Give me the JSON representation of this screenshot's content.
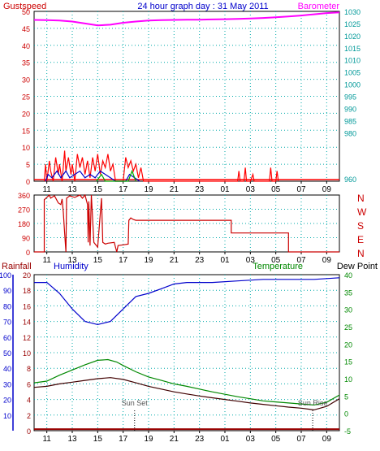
{
  "header": {
    "left_label": "Gustspeed",
    "title": "24 hour graph day : 31 May 2011",
    "right_label": "Barometer"
  },
  "colors": {
    "gust": "#ff0000",
    "wind_avg": "#0000cc",
    "wind_extra": "#00aa00",
    "barometer": "#ff00ff",
    "axis_left_top": "#cc0000",
    "axis_right_top": "#009999",
    "direction": "#cc0000",
    "humidity": "#0000cc",
    "temperature": "#008800",
    "dewpoint": "#400000",
    "rainfall": "#990000",
    "axis_bottom_right": "#008800",
    "grid": "#00aaaa",
    "frame": "#000000",
    "title": "#0000cc"
  },
  "chart_data": [
    {
      "type": "line",
      "name": "wind-and-barometer",
      "x_ticks": [
        "11",
        "13",
        "15",
        "17",
        "19",
        "21",
        "23",
        "01",
        "03",
        "05",
        "07",
        "09"
      ],
      "x_domain_hours": [
        10.0,
        34.0
      ],
      "left_axis": {
        "ticks": [
          0,
          5,
          10,
          15,
          20,
          25,
          30,
          35,
          40,
          45,
          50
        ],
        "ylim": [
          0,
          50
        ]
      },
      "right_axis": {
        "ticks": [
          980,
          985,
          990,
          995,
          1000,
          1005,
          1010,
          1015,
          1020,
          1025,
          1030
        ],
        "extra_tick": 960,
        "ylim": [
          960,
          1030
        ]
      },
      "series": [
        {
          "key": "barometer",
          "axis": "right",
          "points": [
            [
              10.0,
              1026.5
            ],
            [
              11,
              1026.4
            ],
            [
              12,
              1026.2
            ],
            [
              13,
              1025.8
            ],
            [
              14,
              1025.0
            ],
            [
              15,
              1024.2
            ],
            [
              16,
              1024.5
            ],
            [
              17,
              1025.3
            ],
            [
              18,
              1025.8
            ],
            [
              19,
              1026.2
            ],
            [
              20,
              1026.4
            ],
            [
              21,
              1026.5
            ],
            [
              22,
              1026.6
            ],
            [
              23,
              1026.6
            ],
            [
              24,
              1026.7
            ],
            [
              25,
              1026.8
            ],
            [
              26,
              1026.9
            ],
            [
              27,
              1027.1
            ],
            [
              28,
              1027.3
            ],
            [
              29,
              1027.6
            ],
            [
              30,
              1027.9
            ],
            [
              31,
              1028.3
            ],
            [
              32,
              1028.8
            ],
            [
              33,
              1029.3
            ],
            [
              34,
              1029.6
            ]
          ]
        },
        {
          "key": "gust",
          "axis": "left",
          "points": [
            [
              10.8,
              0
            ],
            [
              10.9,
              5
            ],
            [
              11.0,
              0
            ],
            [
              11.2,
              6
            ],
            [
              11.3,
              3
            ],
            [
              11.5,
              0
            ],
            [
              11.7,
              7
            ],
            [
              11.9,
              2
            ],
            [
              12.0,
              5
            ],
            [
              12.2,
              0
            ],
            [
              12.4,
              9
            ],
            [
              12.5,
              3
            ],
            [
              12.7,
              7
            ],
            [
              12.9,
              2
            ],
            [
              13.0,
              5
            ],
            [
              13.2,
              0
            ],
            [
              13.4,
              8
            ],
            [
              13.6,
              4
            ],
            [
              13.8,
              7
            ],
            [
              14.0,
              2
            ],
            [
              14.2,
              6
            ],
            [
              14.4,
              1
            ],
            [
              14.6,
              7
            ],
            [
              14.8,
              3
            ],
            [
              15.0,
              8
            ],
            [
              15.2,
              2
            ],
            [
              15.4,
              6
            ],
            [
              15.6,
              4
            ],
            [
              15.8,
              8
            ],
            [
              16.0,
              3
            ],
            [
              16.2,
              5
            ],
            [
              16.4,
              0
            ],
            [
              16.6,
              0
            ],
            [
              17.0,
              0
            ],
            [
              17.2,
              7
            ],
            [
              17.4,
              4
            ],
            [
              17.6,
              6
            ],
            [
              17.8,
              3
            ],
            [
              18.0,
              5
            ],
            [
              18.2,
              1
            ],
            [
              18.4,
              4
            ],
            [
              18.6,
              0
            ],
            [
              26.0,
              0
            ],
            [
              26.1,
              3
            ],
            [
              26.2,
              0
            ],
            [
              26.5,
              0
            ],
            [
              26.6,
              4
            ],
            [
              26.7,
              0
            ],
            [
              27.0,
              0
            ],
            [
              27.2,
              2
            ],
            [
              27.3,
              0
            ],
            [
              28.5,
              0
            ],
            [
              28.6,
              4
            ],
            [
              28.7,
              0
            ],
            [
              29.0,
              0
            ],
            [
              29.1,
              3
            ],
            [
              29.2,
              0
            ]
          ]
        },
        {
          "key": "wind_avg",
          "axis": "left",
          "points": [
            [
              10.9,
              0
            ],
            [
              11.1,
              2
            ],
            [
              11.4,
              1
            ],
            [
              11.8,
              3
            ],
            [
              12.1,
              1
            ],
            [
              12.5,
              3
            ],
            [
              12.8,
              1
            ],
            [
              13.2,
              2
            ],
            [
              13.6,
              3
            ],
            [
              14.0,
              1
            ],
            [
              14.4,
              2
            ],
            [
              14.8,
              1
            ],
            [
              15.2,
              3
            ],
            [
              15.6,
              2
            ],
            [
              16.0,
              1
            ],
            [
              16.4,
              0
            ],
            [
              17.2,
              0
            ],
            [
              17.5,
              2
            ],
            [
              17.9,
              1
            ],
            [
              18.3,
              0
            ]
          ]
        },
        {
          "key": "wind_extra",
          "axis": "left",
          "points": [
            [
              14.9,
              0
            ],
            [
              15.3,
              2
            ],
            [
              15.6,
              0
            ],
            [
              17.4,
              0
            ],
            [
              17.7,
              3
            ],
            [
              18.0,
              0
            ]
          ]
        }
      ]
    },
    {
      "type": "line",
      "name": "wind-direction",
      "x_ticks": [
        "11",
        "13",
        "15",
        "17",
        "19",
        "21",
        "23",
        "01",
        "03",
        "05",
        "07",
        "09"
      ],
      "x_domain_hours": [
        10.0,
        34.0
      ],
      "left_axis": {
        "ticks": [
          0,
          90,
          180,
          270,
          360
        ],
        "ylim": [
          0,
          360
        ]
      },
      "right_labels": [
        "N",
        "W",
        "S",
        "E",
        "N"
      ],
      "points": [
        [
          10.0,
          0
        ],
        [
          10.8,
          0
        ],
        [
          10.8,
          330
        ],
        [
          11.2,
          360
        ],
        [
          11.3,
          340
        ],
        [
          11.5,
          350
        ],
        [
          11.6,
          355
        ],
        [
          11.9,
          310
        ],
        [
          12.1,
          300
        ],
        [
          12.2,
          335
        ],
        [
          12.3,
          250
        ],
        [
          12.4,
          120
        ],
        [
          12.5,
          0
        ],
        [
          12.55,
          340
        ],
        [
          12.8,
          355
        ],
        [
          13.2,
          345
        ],
        [
          13.6,
          360
        ],
        [
          13.8,
          340
        ],
        [
          14.0,
          360
        ],
        [
          14.2,
          300
        ],
        [
          14.25,
          60
        ],
        [
          14.3,
          320
        ],
        [
          14.4,
          40
        ],
        [
          14.5,
          360
        ],
        [
          14.7,
          60
        ],
        [
          15.0,
          30
        ],
        [
          15.3,
          340
        ],
        [
          15.4,
          60
        ],
        [
          15.6,
          50
        ],
        [
          15.8,
          55
        ],
        [
          16.3,
          60
        ],
        [
          16.5,
          0
        ],
        [
          16.6,
          40
        ],
        [
          17.0,
          45
        ],
        [
          17.4,
          50
        ],
        [
          17.45,
          200
        ],
        [
          17.6,
          215
        ],
        [
          17.8,
          205
        ],
        [
          18.0,
          200
        ],
        [
          25.5,
          200
        ],
        [
          25.5,
          120
        ],
        [
          30.0,
          120
        ],
        [
          30.0,
          0
        ],
        [
          34.0,
          0
        ]
      ]
    },
    {
      "type": "line",
      "name": "humidity-temperature-dewpoint-rain",
      "x_ticks": [
        "11",
        "13",
        "15",
        "17",
        "19",
        "21",
        "23",
        "01",
        "03",
        "05",
        "07",
        "09"
      ],
      "x_domain_hours": [
        10.0,
        34.0
      ],
      "legend": [
        "Rainfall",
        "Humidity",
        "Temperature",
        "Dew Point"
      ],
      "rain_axis": {
        "ticks": [
          0,
          2,
          4,
          6,
          8,
          10,
          12,
          14,
          16,
          18,
          20
        ],
        "ylim": [
          0,
          20
        ]
      },
      "humidity_axis": {
        "ticks": [
          10,
          20,
          30,
          40,
          50,
          60,
          70,
          80,
          90,
          100
        ],
        "ylim": [
          0,
          100
        ]
      },
      "temperature_axis": {
        "ticks": [
          -5,
          0,
          5,
          10,
          15,
          20,
          25,
          30,
          35,
          40
        ],
        "ylim": [
          -5,
          40
        ]
      },
      "annotations": [
        {
          "label": "Sun Set",
          "x": 17.9
        },
        {
          "label": "Sun Rise",
          "x": 31.9
        }
      ],
      "series": [
        {
          "key": "humidity",
          "axis": "humidity",
          "points": [
            [
              10.0,
              95
            ],
            [
              11,
              95
            ],
            [
              12,
              88
            ],
            [
              13,
              78
            ],
            [
              14,
              70
            ],
            [
              15,
              68
            ],
            [
              16,
              70
            ],
            [
              17,
              78
            ],
            [
              18,
              86
            ],
            [
              19,
              88
            ],
            [
              20,
              91
            ],
            [
              21,
              94
            ],
            [
              22,
              95
            ],
            [
              24,
              95
            ],
            [
              26,
              96
            ],
            [
              28,
              97
            ],
            [
              30,
              97
            ],
            [
              32,
              97
            ],
            [
              34,
              98
            ]
          ]
        },
        {
          "key": "temperature",
          "axis": "temperature",
          "points": [
            [
              10.0,
              8.8
            ],
            [
              11,
              9.3
            ],
            [
              12,
              11.0
            ],
            [
              13,
              12.5
            ],
            [
              14,
              14.0
            ],
            [
              15,
              15.3
            ],
            [
              15.8,
              15.5
            ],
            [
              16.5,
              14.8
            ],
            [
              17,
              13.8
            ],
            [
              18,
              12.0
            ],
            [
              19,
              10.5
            ],
            [
              20,
              9.5
            ],
            [
              21,
              8.5
            ],
            [
              22,
              7.8
            ],
            [
              23,
              7.0
            ],
            [
              24,
              6.2
            ],
            [
              25,
              5.5
            ],
            [
              26,
              4.8
            ],
            [
              27,
              4.2
            ],
            [
              28,
              3.6
            ],
            [
              29,
              3.3
            ],
            [
              30,
              3.0
            ],
            [
              31,
              2.7
            ],
            [
              32,
              2.4
            ],
            [
              33,
              3.2
            ],
            [
              34,
              5.3
            ]
          ]
        },
        {
          "key": "dewpoint",
          "axis": "temperature",
          "points": [
            [
              10.0,
              7.5
            ],
            [
              11,
              7.8
            ],
            [
              12,
              8.5
            ],
            [
              13,
              9.0
            ],
            [
              14,
              9.5
            ],
            [
              15,
              10.0
            ],
            [
              16,
              10.3
            ],
            [
              17,
              9.8
            ],
            [
              18,
              8.8
            ],
            [
              19,
              7.8
            ],
            [
              20,
              7.0
            ],
            [
              21,
              6.2
            ],
            [
              22,
              5.6
            ],
            [
              23,
              5.0
            ],
            [
              24,
              4.5
            ],
            [
              25,
              4.0
            ],
            [
              26,
              3.5
            ],
            [
              27,
              3.0
            ],
            [
              28,
              2.6
            ],
            [
              29,
              2.2
            ],
            [
              30,
              1.8
            ],
            [
              31,
              1.5
            ],
            [
              32,
              1.0
            ],
            [
              33,
              2.0
            ],
            [
              34,
              4.2
            ]
          ]
        },
        {
          "key": "rainfall",
          "axis": "rain",
          "points": [
            [
              10.0,
              0.2
            ],
            [
              34.0,
              0.2
            ]
          ]
        }
      ]
    }
  ]
}
